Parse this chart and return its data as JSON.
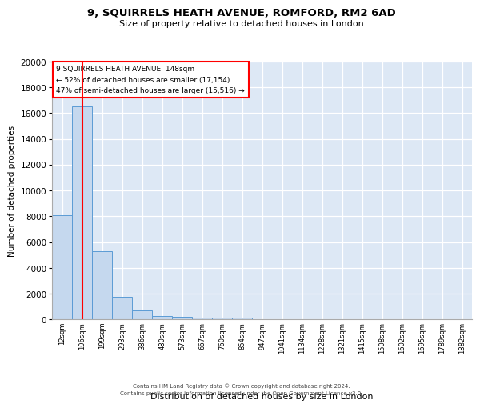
{
  "title1": "9, SQUIRRELS HEATH AVENUE, ROMFORD, RM2 6AD",
  "title2": "Size of property relative to detached houses in London",
  "xlabel": "Distribution of detached houses by size in London",
  "ylabel": "Number of detached properties",
  "bar_labels": [
    "12sqm",
    "106sqm",
    "199sqm",
    "293sqm",
    "386sqm",
    "480sqm",
    "573sqm",
    "667sqm",
    "760sqm",
    "854sqm",
    "947sqm",
    "1041sqm",
    "1134sqm",
    "1228sqm",
    "1321sqm",
    "1415sqm",
    "1508sqm",
    "1602sqm",
    "1695sqm",
    "1789sqm",
    "1882sqm"
  ],
  "bar_heights": [
    8100,
    16500,
    5300,
    1750,
    700,
    300,
    220,
    180,
    160,
    130,
    0,
    0,
    0,
    0,
    0,
    0,
    0,
    0,
    0,
    0,
    0
  ],
  "bar_color": "#c5d8ee",
  "bar_edge_color": "#5b9bd5",
  "background_color": "#dde8f5",
  "vline_x": 1,
  "vline_color": "red",
  "annotation_title": "9 SQUIRRELS HEATH AVENUE: 148sqm",
  "annotation_line1": "← 52% of detached houses are smaller (17,154)",
  "annotation_line2": "47% of semi-detached houses are larger (15,516) →",
  "annotation_box_color": "white",
  "annotation_box_edge": "red",
  "ylim": [
    0,
    20000
  ],
  "yticks": [
    0,
    2000,
    4000,
    6000,
    8000,
    10000,
    12000,
    14000,
    16000,
    18000,
    20000
  ],
  "footer1": "Contains HM Land Registry data © Crown copyright and database right 2024.",
  "footer2": "Contains public sector information licensed under the Open Government Licence v3.0."
}
